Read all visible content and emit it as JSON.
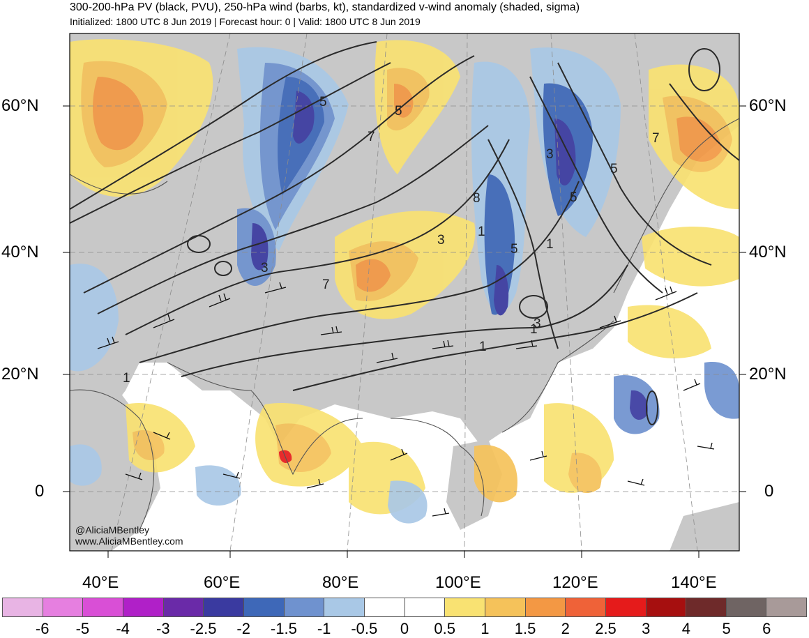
{
  "title": "300-200-hPa PV (black, PVU), 250-hPa wind (barbs, kt), standardized v-wind anomaly (shaded, sigma)",
  "subtitle": "Initialized: 1800 UTC 8 Jun 2019 | Forecast hour: 0 | Valid: 1800 UTC 8 Jun 2019",
  "credit": {
    "handle": "@AliciaMBentley",
    "url": "www.AliciaMBentley.com"
  },
  "lat_labels": [
    "60°N",
    "40°N",
    "20°N",
    "0"
  ],
  "lon_labels": [
    "40°E",
    "60°E",
    "80°E",
    "100°E",
    "120°E",
    "140°E"
  ],
  "pv_contour_labels": [
    "5",
    "5",
    "7",
    "3",
    "8",
    "5",
    "1",
    "3",
    "5",
    "1",
    "3",
    "7",
    "1",
    "1",
    "5",
    "1",
    "3",
    "7"
  ],
  "colorbar": {
    "labels": [
      "-6",
      "-5",
      "-4",
      "-3",
      "-2.5",
      "-2",
      "-1.5",
      "-1",
      "-0.5",
      "0",
      "0.5",
      "1",
      "1.5",
      "2",
      "2.5",
      "3",
      "4",
      "5",
      "6"
    ],
    "colors": [
      "#e8b4e4",
      "#e67fe0",
      "#d94fd6",
      "#b020c8",
      "#6a2aa8",
      "#3a3aa0",
      "#3e68b8",
      "#6f92cf",
      "#a9c8e6",
      "#ffffff",
      "#ffffff",
      "#f9e272",
      "#f5c25a",
      "#f39844",
      "#ef6238",
      "#e51b1b",
      "#a60f0f",
      "#6e2a2a",
      "#6f6463",
      "#a89a99"
    ]
  },
  "map_colors": {
    "land": "#c8c8c8",
    "ocean": "#ffffff",
    "contour": "#2a2a2a",
    "coast": "#555555"
  }
}
